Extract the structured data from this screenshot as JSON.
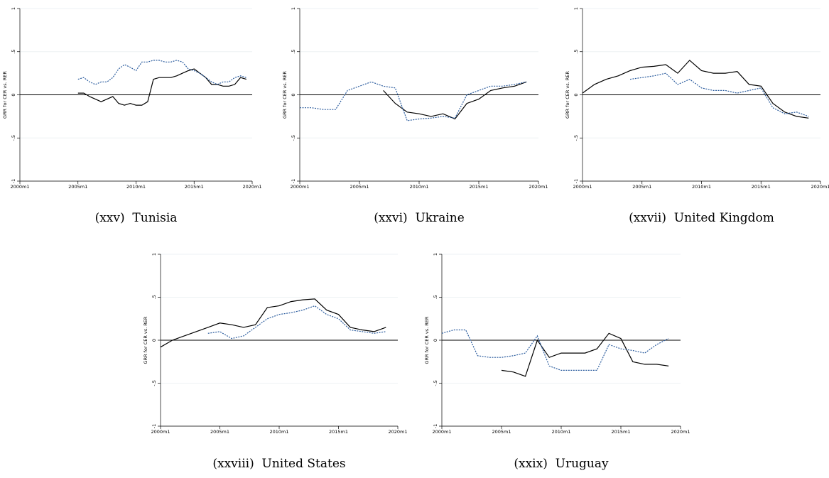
{
  "chart_data": [
    {
      "type": "line",
      "caption": "(xxv)  Tunisia",
      "ylabel": "GRR for CER vs. RER",
      "x": [
        2005,
        2005.5,
        2006,
        2006.5,
        2007,
        2007.5,
        2008,
        2008.5,
        2009,
        2009.5,
        2010,
        2010.5,
        2011,
        2011.5,
        2012,
        2012.5,
        2013,
        2013.5,
        2014,
        2014.5,
        2015,
        2015.5,
        2016,
        2016.5,
        2017,
        2017.5,
        2018,
        2018.5,
        2019,
        2019.5
      ],
      "series": [
        {
          "color": "#000000",
          "dash": false,
          "values": [
            0.02,
            0.02,
            -0.02,
            -0.05,
            -0.08,
            -0.05,
            -0.02,
            -0.1,
            -0.12,
            -0.1,
            -0.12,
            -0.12,
            -0.08,
            0.18,
            0.2,
            0.2,
            0.2,
            0.22,
            0.25,
            0.28,
            0.3,
            0.25,
            0.2,
            0.12,
            0.12,
            0.1,
            0.1,
            0.12,
            0.2,
            0.18
          ]
        },
        {
          "color": "#2b5c9e",
          "dash": true,
          "values": [
            0.18,
            0.2,
            0.15,
            0.12,
            0.15,
            0.15,
            0.2,
            0.3,
            0.35,
            0.32,
            0.28,
            0.38,
            0.38,
            0.4,
            0.4,
            0.38,
            0.38,
            0.4,
            0.38,
            0.3,
            0.28,
            0.25,
            0.2,
            0.15,
            0.12,
            0.15,
            0.15,
            0.2,
            0.22,
            0.2
          ]
        }
      ],
      "xlim": [
        2000,
        2020
      ],
      "ylim": [
        -1,
        1
      ],
      "xticks": [
        {
          "value": 2000,
          "label": "2000m1"
        },
        {
          "value": 2005,
          "label": "2005m1"
        },
        {
          "value": 2010,
          "label": "2010m1"
        },
        {
          "value": 2015,
          "label": "2015m1"
        },
        {
          "value": 2020,
          "label": "2020m1"
        }
      ],
      "yticks": [
        -1,
        {
          "value": -0.5,
          "label": "-.5"
        },
        0,
        {
          "value": 0.5,
          "label": ".5"
        },
        1
      ],
      "grid": true
    },
    {
      "type": "line",
      "caption": "(xxvi)  Ukraine",
      "ylabel": "GRR for CER vs. RER",
      "x": [
        2000,
        2001,
        2002,
        2003,
        2004,
        2005,
        2006,
        2007,
        2008,
        2009,
        2010,
        2011,
        2012,
        2013,
        2014,
        2015,
        2016,
        2017,
        2018,
        2019
      ],
      "series": [
        {
          "color": "#000000",
          "dash": false,
          "values": [
            null,
            null,
            null,
            null,
            null,
            null,
            null,
            0.05,
            -0.1,
            -0.2,
            -0.22,
            -0.25,
            -0.22,
            -0.28,
            -0.1,
            -0.05,
            0.05,
            0.08,
            0.1,
            0.15
          ]
        },
        {
          "color": "#2b5c9e",
          "dash": true,
          "values": [
            -0.15,
            -0.15,
            -0.17,
            -0.17,
            0.05,
            0.1,
            0.15,
            0.1,
            0.08,
            -0.3,
            -0.28,
            -0.27,
            -0.25,
            -0.27,
            0.0,
            0.05,
            0.1,
            0.1,
            0.12,
            0.15
          ]
        }
      ],
      "xlim": [
        2000,
        2020
      ],
      "ylim": [
        -1,
        1
      ],
      "xticks": [
        {
          "value": 2000,
          "label": "2000m1"
        },
        {
          "value": 2005,
          "label": "2005m1"
        },
        {
          "value": 2010,
          "label": "2010m1"
        },
        {
          "value": 2015,
          "label": "2015m1"
        },
        {
          "value": 2020,
          "label": "2020m1"
        }
      ],
      "yticks": [
        -1,
        {
          "value": -0.5,
          "label": "-.5"
        },
        0,
        {
          "value": 0.5,
          "label": ".5"
        },
        1
      ],
      "grid": true
    },
    {
      "type": "line",
      "caption": "(xxvii)  United Kingdom",
      "ylabel": "GRR for CER vs. RER",
      "x": [
        2000,
        2001,
        2002,
        2003,
        2004,
        2005,
        2006,
        2007,
        2008,
        2009,
        2010,
        2011,
        2012,
        2013,
        2014,
        2015,
        2016,
        2017,
        2018,
        2019
      ],
      "series": [
        {
          "color": "#000000",
          "dash": false,
          "values": [
            0.02,
            0.12,
            0.18,
            0.22,
            0.28,
            0.32,
            0.33,
            0.35,
            0.25,
            0.4,
            0.28,
            0.25,
            0.25,
            0.27,
            0.12,
            0.1,
            -0.1,
            -0.2,
            -0.25,
            -0.27
          ]
        },
        {
          "color": "#2b5c9e",
          "dash": true,
          "values": [
            null,
            null,
            null,
            null,
            0.18,
            0.2,
            0.22,
            0.25,
            0.12,
            0.18,
            0.08,
            0.05,
            0.05,
            0.02,
            0.05,
            0.08,
            -0.15,
            -0.22,
            -0.2,
            -0.25
          ]
        }
      ],
      "xlim": [
        2000,
        2020
      ],
      "ylim": [
        -1,
        1
      ],
      "xticks": [
        {
          "value": 2000,
          "label": "2000m1"
        },
        {
          "value": 2005,
          "label": "2005m1"
        },
        {
          "value": 2010,
          "label": "2010m1"
        },
        {
          "value": 2015,
          "label": "2015m1"
        },
        {
          "value": 2020,
          "label": "2020m1"
        }
      ],
      "yticks": [
        -1,
        {
          "value": -0.5,
          "label": "-.5"
        },
        0,
        {
          "value": 0.5,
          "label": ".5"
        },
        1
      ],
      "grid": true
    },
    {
      "type": "line",
      "caption": "(xxviii)  United States",
      "ylabel": "GRR for CER vs. RER",
      "x": [
        2000,
        2001,
        2002,
        2003,
        2004,
        2005,
        2006,
        2007,
        2008,
        2009,
        2010,
        2011,
        2012,
        2013,
        2014,
        2015,
        2016,
        2017,
        2018,
        2019
      ],
      "series": [
        {
          "color": "#000000",
          "dash": false,
          "values": [
            -0.08,
            0.0,
            0.05,
            0.1,
            0.15,
            0.2,
            0.18,
            0.15,
            0.18,
            0.38,
            0.4,
            0.45,
            0.47,
            0.48,
            0.35,
            0.3,
            0.15,
            0.12,
            0.1,
            0.15
          ]
        },
        {
          "color": "#2b5c9e",
          "dash": true,
          "values": [
            null,
            null,
            null,
            null,
            0.08,
            0.1,
            0.02,
            0.05,
            0.15,
            0.25,
            0.3,
            0.32,
            0.35,
            0.4,
            0.3,
            0.25,
            0.12,
            0.1,
            0.08,
            0.1
          ]
        }
      ],
      "xlim": [
        2000,
        2020
      ],
      "ylim": [
        -1,
        1
      ],
      "xticks": [
        {
          "value": 2000,
          "label": "2000m1"
        },
        {
          "value": 2005,
          "label": "2005m1"
        },
        {
          "value": 2010,
          "label": "2010m1"
        },
        {
          "value": 2015,
          "label": "2015m1"
        },
        {
          "value": 2020,
          "label": "2020m1"
        }
      ],
      "yticks": [
        -1,
        {
          "value": -0.5,
          "label": "-.5"
        },
        0,
        {
          "value": 0.5,
          "label": ".5"
        },
        1
      ],
      "grid": true
    },
    {
      "type": "line",
      "caption": "(xxix)  Uruguay",
      "ylabel": "GRR for CER vs. RER",
      "x": [
        2000,
        2001,
        2002,
        2003,
        2004,
        2005,
        2006,
        2007,
        2008,
        2009,
        2010,
        2011,
        2012,
        2013,
        2014,
        2015,
        2016,
        2017,
        2018,
        2019
      ],
      "series": [
        {
          "color": "#000000",
          "dash": false,
          "values": [
            null,
            null,
            null,
            null,
            null,
            -0.35,
            -0.37,
            -0.42,
            0.0,
            -0.2,
            -0.15,
            -0.15,
            -0.15,
            -0.1,
            0.08,
            0.02,
            -0.25,
            -0.28,
            -0.28,
            -0.3
          ]
        },
        {
          "color": "#2b5c9e",
          "dash": true,
          "values": [
            0.08,
            0.12,
            0.12,
            -0.18,
            -0.2,
            -0.2,
            -0.18,
            -0.15,
            0.05,
            -0.3,
            -0.35,
            -0.35,
            -0.35,
            -0.35,
            -0.05,
            -0.1,
            -0.12,
            -0.15,
            -0.05,
            0.02
          ]
        }
      ],
      "xlim": [
        2000,
        2020
      ],
      "ylim": [
        -1,
        1
      ],
      "xticks": [
        {
          "value": 2000,
          "label": "2000m1"
        },
        {
          "value": 2005,
          "label": "2005m1"
        },
        {
          "value": 2010,
          "label": "2010m1"
        },
        {
          "value": 2015,
          "label": "2015m1"
        },
        {
          "value": 2020,
          "label": "2020m1"
        }
      ],
      "yticks": [
        -1,
        {
          "value": -0.5,
          "label": "-.5"
        },
        0,
        {
          "value": 0.5,
          "label": ".5"
        },
        1
      ],
      "grid": true
    }
  ]
}
